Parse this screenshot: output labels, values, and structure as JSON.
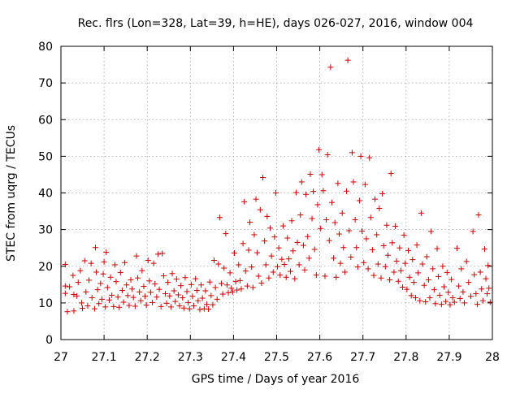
{
  "chart_data": {
    "type": "scatter",
    "title": "Rec. flrs (Lon=328, Lat=39, h=HE), days 026-027, 2016, window 004",
    "xlabel": "GPS time / Days of year 2016",
    "ylabel": "STEC from uqrg / TECUs",
    "xlim": [
      27,
      28
    ],
    "ylim": [
      0,
      80
    ],
    "xticks": [
      27,
      27.1,
      27.2,
      27.3,
      27.4,
      27.5,
      27.6,
      27.7,
      27.8,
      27.9,
      28
    ],
    "xtick_labels": [
      "27",
      "27.1",
      "27.2",
      "27.3",
      "27.4",
      "27.5",
      "27.6",
      "27.7",
      "27.8",
      "27.9",
      "28"
    ],
    "yticks": [
      0,
      10,
      20,
      30,
      40,
      50,
      60,
      70,
      80
    ],
    "ytick_labels": [
      "0",
      "10",
      "20",
      "30",
      "40",
      "50",
      "60",
      "70",
      "80"
    ],
    "grid": true,
    "marker": "+",
    "marker_color": "#cc0000",
    "series": [
      {
        "name": "STEC",
        "points": [
          [
            27.01,
            20.5
          ],
          [
            27.01,
            14.6
          ],
          [
            27.01,
            12.6
          ],
          [
            27.015,
            7.6
          ],
          [
            27.02,
            14.4
          ],
          [
            27.028,
            17.5
          ],
          [
            27.03,
            12.3
          ],
          [
            27.03,
            7.8
          ],
          [
            27.037,
            11.9
          ],
          [
            27.04,
            15.6
          ],
          [
            27.045,
            18.8
          ],
          [
            27.048,
            10.0
          ],
          [
            27.05,
            8.5
          ],
          [
            27.055,
            21.5
          ],
          [
            27.058,
            13.0
          ],
          [
            27.062,
            9.2
          ],
          [
            27.065,
            16.2
          ],
          [
            27.07,
            20.8
          ],
          [
            27.072,
            11.4
          ],
          [
            27.078,
            8.4
          ],
          [
            27.08,
            25.1
          ],
          [
            27.082,
            18.4
          ],
          [
            27.085,
            13.6
          ],
          [
            27.088,
            9.8
          ],
          [
            27.092,
            15.3
          ],
          [
            27.095,
            11.0
          ],
          [
            27.098,
            17.9
          ],
          [
            27.1,
            21.2
          ],
          [
            27.103,
            8.9
          ],
          [
            27.105,
            23.8
          ],
          [
            27.108,
            14.2
          ],
          [
            27.112,
            10.8
          ],
          [
            27.115,
            17.0
          ],
          [
            27.118,
            12.1
          ],
          [
            27.122,
            9.0
          ],
          [
            27.125,
            20.4
          ],
          [
            27.128,
            15.8
          ],
          [
            27.132,
            11.6
          ],
          [
            27.135,
            8.8
          ],
          [
            27.138,
            18.3
          ],
          [
            27.142,
            13.4
          ],
          [
            27.145,
            10.2
          ],
          [
            27.148,
            21.0
          ],
          [
            27.152,
            14.9
          ],
          [
            27.155,
            12.0
          ],
          [
            27.158,
            9.3
          ],
          [
            27.162,
            16.3
          ],
          [
            27.165,
            13.8
          ],
          [
            27.168,
            11.5
          ],
          [
            27.172,
            9.1
          ],
          [
            27.175,
            22.8
          ],
          [
            27.178,
            16.8
          ],
          [
            27.182,
            13.0
          ],
          [
            27.185,
            10.6
          ],
          [
            27.188,
            18.8
          ],
          [
            27.192,
            14.5
          ],
          [
            27.195,
            11.8
          ],
          [
            27.198,
            9.4
          ],
          [
            27.202,
            21.6
          ],
          [
            27.205,
            16.0
          ],
          [
            27.208,
            12.9
          ],
          [
            27.212,
            10.1
          ],
          [
            27.215,
            20.8
          ],
          [
            27.218,
            15.2
          ],
          [
            27.222,
            11.6
          ],
          [
            27.225,
            23.3
          ],
          [
            27.228,
            13.7
          ],
          [
            27.232,
            9.0
          ],
          [
            27.235,
            23.5
          ],
          [
            27.238,
            17.4
          ],
          [
            27.242,
            12.5
          ],
          [
            27.245,
            9.9
          ],
          [
            27.248,
            15.6
          ],
          [
            27.252,
            11.9
          ],
          [
            27.255,
            8.9
          ],
          [
            27.258,
            18.0
          ],
          [
            27.262,
            13.3
          ],
          [
            27.265,
            10.4
          ],
          [
            27.268,
            16.5
          ],
          [
            27.272,
            12.2
          ],
          [
            27.275,
            9.2
          ],
          [
            27.278,
            14.7
          ],
          [
            27.282,
            11.4
          ],
          [
            27.285,
            8.6
          ],
          [
            27.288,
            16.9
          ],
          [
            27.292,
            13.1
          ],
          [
            27.295,
            10.1
          ],
          [
            27.298,
            8.4
          ],
          [
            27.302,
            15.0
          ],
          [
            27.305,
            11.8
          ],
          [
            27.308,
            9.2
          ],
          [
            27.312,
            16.6
          ],
          [
            27.315,
            13.4
          ],
          [
            27.318,
            10.6
          ],
          [
            27.322,
            8.2
          ],
          [
            27.325,
            14.9
          ],
          [
            27.328,
            11.3
          ],
          [
            27.332,
            8.4
          ],
          [
            27.335,
            13.3
          ],
          [
            27.338,
            9.6
          ],
          [
            27.342,
            8.3
          ],
          [
            27.345,
            15.7
          ],
          [
            27.348,
            12.0
          ],
          [
            27.352,
            9.5
          ],
          [
            27.355,
            21.6
          ],
          [
            27.358,
            14.2
          ],
          [
            27.362,
            11.0
          ],
          [
            27.365,
            20.6
          ],
          [
            27.368,
            33.3
          ],
          [
            27.372,
            15.3
          ],
          [
            27.375,
            12.4
          ],
          [
            27.378,
            19.5
          ],
          [
            27.382,
            28.9
          ],
          [
            27.385,
            14.9
          ],
          [
            27.388,
            12.8
          ],
          [
            27.392,
            18.2
          ],
          [
            27.395,
            14.0
          ],
          [
            27.398,
            13.0
          ],
          [
            27.402,
            23.6
          ],
          [
            27.405,
            15.8
          ],
          [
            27.408,
            13.5
          ],
          [
            27.412,
            20.4
          ],
          [
            27.415,
            16.1
          ],
          [
            27.418,
            13.8
          ],
          [
            27.422,
            26.2
          ],
          [
            27.425,
            37.6
          ],
          [
            27.428,
            18.7
          ],
          [
            27.432,
            14.6
          ],
          [
            27.435,
            24.4
          ],
          [
            27.438,
            32.0
          ],
          [
            27.442,
            19.8
          ],
          [
            27.445,
            14.2
          ],
          [
            27.448,
            28.6
          ],
          [
            27.452,
            38.3
          ],
          [
            27.455,
            23.7
          ],
          [
            27.458,
            17.3
          ],
          [
            27.462,
            35.4
          ],
          [
            27.465,
            15.4
          ],
          [
            27.468,
            44.2
          ],
          [
            27.472,
            26.9
          ],
          [
            27.475,
            20.4
          ],
          [
            27.478,
            33.6
          ],
          [
            27.482,
            16.8
          ],
          [
            27.485,
            30.4
          ],
          [
            27.488,
            22.8
          ],
          [
            27.492,
            18.4
          ],
          [
            27.495,
            28.0
          ],
          [
            27.498,
            40.0
          ],
          [
            27.502,
            19.9
          ],
          [
            27.505,
            25.0
          ],
          [
            27.508,
            17.6
          ],
          [
            27.512,
            21.9
          ],
          [
            27.515,
            31.0
          ],
          [
            27.518,
            20.5
          ],
          [
            27.522,
            17.0
          ],
          [
            27.525,
            27.7
          ],
          [
            27.528,
            22.0
          ],
          [
            27.532,
            18.6
          ],
          [
            27.535,
            32.4
          ],
          [
            27.538,
            24.2
          ],
          [
            27.542,
            16.6
          ],
          [
            27.545,
            40.1
          ],
          [
            27.548,
            26.5
          ],
          [
            27.552,
            20.4
          ],
          [
            27.555,
            34.0
          ],
          [
            27.558,
            43.0
          ],
          [
            27.562,
            25.7
          ],
          [
            27.565,
            19.0
          ],
          [
            27.568,
            39.6
          ],
          [
            27.572,
            28.1
          ],
          [
            27.575,
            22.2
          ],
          [
            27.578,
            45.1
          ],
          [
            27.582,
            33.0
          ],
          [
            27.585,
            40.4
          ],
          [
            27.588,
            24.6
          ],
          [
            27.592,
            17.6
          ],
          [
            27.595,
            36.8
          ],
          [
            27.598,
            51.8
          ],
          [
            27.602,
            30.3
          ],
          [
            27.605,
            45.0
          ],
          [
            27.608,
            40.6
          ],
          [
            27.612,
            17.3
          ],
          [
            27.615,
            32.7
          ],
          [
            27.618,
            50.4
          ],
          [
            27.622,
            27.0
          ],
          [
            27.625,
            74.3
          ],
          [
            27.628,
            37.4
          ],
          [
            27.632,
            22.2
          ],
          [
            27.635,
            31.9
          ],
          [
            27.638,
            17.0
          ],
          [
            27.642,
            42.6
          ],
          [
            27.645,
            28.8
          ],
          [
            27.648,
            20.8
          ],
          [
            27.652,
            34.5
          ],
          [
            27.655,
            25.1
          ],
          [
            27.658,
            18.4
          ],
          [
            27.662,
            40.5
          ],
          [
            27.665,
            76.2
          ],
          [
            27.668,
            29.7
          ],
          [
            27.672,
            22.5
          ],
          [
            27.675,
            51.0
          ],
          [
            27.678,
            43.0
          ],
          [
            27.682,
            32.7
          ],
          [
            27.685,
            25.1
          ],
          [
            27.688,
            19.8
          ],
          [
            27.692,
            37.9
          ],
          [
            27.695,
            50.0
          ],
          [
            27.698,
            29.6
          ],
          [
            27.702,
            21.0
          ],
          [
            27.705,
            42.3
          ],
          [
            27.708,
            27.5
          ],
          [
            27.712,
            19.3
          ],
          [
            27.715,
            49.6
          ],
          [
            27.718,
            33.3
          ],
          [
            27.722,
            24.5
          ],
          [
            27.725,
            17.5
          ],
          [
            27.728,
            38.3
          ],
          [
            27.732,
            28.6
          ],
          [
            27.735,
            20.6
          ],
          [
            27.738,
            35.8
          ],
          [
            27.742,
            16.8
          ],
          [
            27.745,
            39.8
          ],
          [
            27.748,
            25.6
          ],
          [
            27.752,
            19.9
          ],
          [
            27.755,
            31.2
          ],
          [
            27.758,
            23.0
          ],
          [
            27.762,
            16.3
          ],
          [
            27.765,
            45.3
          ],
          [
            27.768,
            26.4
          ],
          [
            27.772,
            18.4
          ],
          [
            27.775,
            30.9
          ],
          [
            27.778,
            21.4
          ],
          [
            27.782,
            15.9
          ],
          [
            27.785,
            25.0
          ],
          [
            27.788,
            18.8
          ],
          [
            27.792,
            14.3
          ],
          [
            27.795,
            28.5
          ],
          [
            27.798,
            20.8
          ],
          [
            27.802,
            13.7
          ],
          [
            27.805,
            24.3
          ],
          [
            27.808,
            17.0
          ],
          [
            27.812,
            12.0
          ],
          [
            27.815,
            21.8
          ],
          [
            27.818,
            15.6
          ],
          [
            27.822,
            11.4
          ],
          [
            27.825,
            25.8
          ],
          [
            27.828,
            18.2
          ],
          [
            27.832,
            10.6
          ],
          [
            27.835,
            34.5
          ],
          [
            27.838,
            20.6
          ],
          [
            27.842,
            14.8
          ],
          [
            27.845,
            10.3
          ],
          [
            27.848,
            22.6
          ],
          [
            27.852,
            16.3
          ],
          [
            27.855,
            11.4
          ],
          [
            27.858,
            29.5
          ],
          [
            27.862,
            19.3
          ],
          [
            27.865,
            13.6
          ],
          [
            27.868,
            9.8
          ],
          [
            27.872,
            24.8
          ],
          [
            27.875,
            17.2
          ],
          [
            27.878,
            12.1
          ],
          [
            27.882,
            9.6
          ],
          [
            27.885,
            20.0
          ],
          [
            27.888,
            14.4
          ],
          [
            27.892,
            10.4
          ],
          [
            27.895,
            18.3
          ],
          [
            27.898,
            12.9
          ],
          [
            27.902,
            9.5
          ],
          [
            27.905,
            16.4
          ],
          [
            27.908,
            11.4
          ],
          [
            27.912,
            10.2
          ],
          [
            27.918,
            24.9
          ],
          [
            27.922,
            14.6
          ],
          [
            27.925,
            11.2
          ],
          [
            27.928,
            19.3
          ],
          [
            27.932,
            13.0
          ],
          [
            27.935,
            10.0
          ],
          [
            27.94,
            21.3
          ],
          [
            27.945,
            15.6
          ],
          [
            27.95,
            11.8
          ],
          [
            27.955,
            29.5
          ],
          [
            27.958,
            17.7
          ],
          [
            27.962,
            12.5
          ],
          [
            27.965,
            9.6
          ],
          [
            27.968,
            34.0
          ],
          [
            27.972,
            18.4
          ],
          [
            27.975,
            13.8
          ],
          [
            27.978,
            10.6
          ],
          [
            27.982,
            24.7
          ],
          [
            27.985,
            16.6
          ],
          [
            27.988,
            12.5
          ],
          [
            27.99,
            20.2
          ],
          [
            27.992,
            14.0
          ],
          [
            27.995,
            10.2
          ]
        ]
      }
    ]
  }
}
